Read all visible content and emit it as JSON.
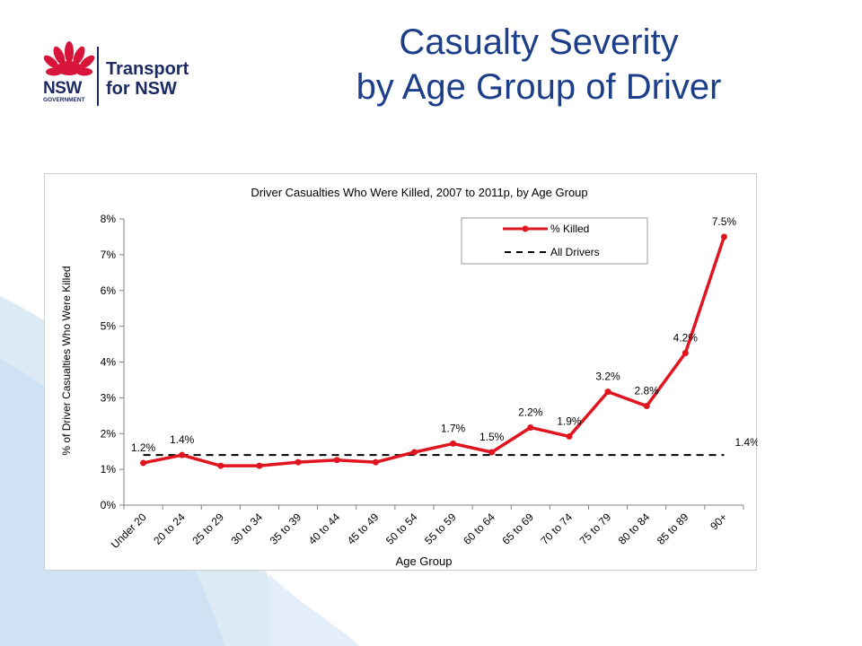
{
  "page": {
    "title_line1": "Casualty Severity",
    "title_line2": "by Age Group of Driver"
  },
  "logo": {
    "nsw": "NSW",
    "government": "GOVERNMENT",
    "line1": "Transport",
    "line2": "for NSW",
    "icon": "waratah-flower-icon",
    "colors": {
      "flower": "#d7153a",
      "text": "#1d2b63"
    }
  },
  "colors": {
    "title": "#1d3f8a",
    "series": "#e0151f",
    "reference": "#000000",
    "background_swoosh": "#dbeaf6"
  },
  "chart_data": {
    "type": "line",
    "title": "Driver Casualties Who Were Killed, 2007 to 2011p, by Age Group",
    "xlabel": "Age Group",
    "ylabel": "% of Driver Casualties Who Were Killed",
    "ylim": [
      0,
      8
    ],
    "y_ticks": [
      "0%",
      "1%",
      "2%",
      "3%",
      "4%",
      "5%",
      "6%",
      "7%",
      "8%"
    ],
    "grid": false,
    "legend_position": "top-right",
    "categories": [
      "Under 20",
      "20 to 24",
      "25 to 29",
      "30 to 34",
      "35 to 39",
      "40 to 44",
      "45 to 49",
      "50 to 54",
      "55 to 59",
      "60 to 64",
      "65 to 69",
      "70 to 74",
      "75 to 79",
      "80 to 84",
      "85 to 89",
      "90+"
    ],
    "series": [
      {
        "name": "% Killed",
        "values": [
          1.18,
          1.4,
          1.1,
          1.1,
          1.2,
          1.26,
          1.2,
          1.48,
          1.72,
          1.48,
          2.17,
          1.92,
          3.17,
          2.77,
          4.25,
          7.5
        ],
        "data_labels": [
          "1.2%",
          "1.4%",
          "",
          "",
          "",
          "",
          "",
          "",
          "1.7%",
          "1.5%",
          "2.2%",
          "1.9%",
          "3.2%",
          "2.8%",
          "4.2%",
          "7.5%"
        ]
      }
    ],
    "reference_line": {
      "name": "All Drivers",
      "value": 1.4,
      "label": "1.4%"
    }
  }
}
